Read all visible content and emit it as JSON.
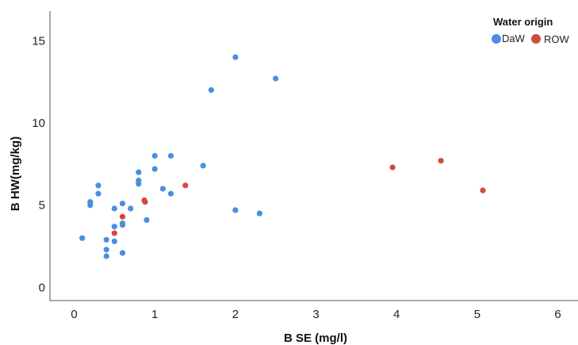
{
  "chart_data": {
    "type": "scatter",
    "xlabel": "B SE (mg/l)",
    "ylabel": "B HW(mg/kg)",
    "xlim": [
      -0.3,
      6.25
    ],
    "ylim": [
      -0.8,
      16.8
    ],
    "xticks": [
      "0",
      "1",
      "2",
      "3",
      "4",
      "5",
      "6"
    ],
    "yticks": [
      "0",
      "5",
      "10",
      "15"
    ],
    "grid": false,
    "legend": {
      "title": "Water origin",
      "placement": "top-right",
      "entries": [
        "DaW",
        "ROW"
      ]
    },
    "series": [
      {
        "name": "DaW",
        "color": "#4a8ee0",
        "points": [
          [
            0.1,
            3.0
          ],
          [
            0.2,
            5.2
          ],
          [
            0.2,
            5.0
          ],
          [
            0.3,
            6.2
          ],
          [
            0.3,
            5.7
          ],
          [
            0.4,
            2.9
          ],
          [
            0.4,
            2.3
          ],
          [
            0.4,
            1.9
          ],
          [
            0.5,
            4.8
          ],
          [
            0.5,
            3.7
          ],
          [
            0.5,
            2.8
          ],
          [
            0.6,
            5.1
          ],
          [
            0.6,
            3.9
          ],
          [
            0.6,
            3.8
          ],
          [
            0.6,
            2.1
          ],
          [
            0.7,
            4.8
          ],
          [
            0.8,
            7.0
          ],
          [
            0.8,
            6.5
          ],
          [
            0.8,
            6.3
          ],
          [
            0.9,
            4.1
          ],
          [
            1.0,
            8.0
          ],
          [
            1.0,
            7.2
          ],
          [
            1.1,
            6.0
          ],
          [
            1.2,
            8.0
          ],
          [
            1.2,
            5.7
          ],
          [
            1.6,
            7.4
          ],
          [
            1.7,
            12.0
          ],
          [
            2.0,
            14.0
          ],
          [
            2.0,
            4.7
          ],
          [
            2.3,
            4.5
          ],
          [
            2.5,
            12.7
          ]
        ]
      },
      {
        "name": "ROW",
        "color": "#d04a3c",
        "points": [
          [
            0.5,
            3.3
          ],
          [
            0.6,
            4.3
          ],
          [
            0.87,
            5.3
          ],
          [
            0.88,
            5.2
          ],
          [
            1.38,
            6.2
          ],
          [
            3.95,
            7.3
          ],
          [
            4.55,
            7.7
          ],
          [
            5.07,
            5.9
          ]
        ]
      }
    ]
  }
}
